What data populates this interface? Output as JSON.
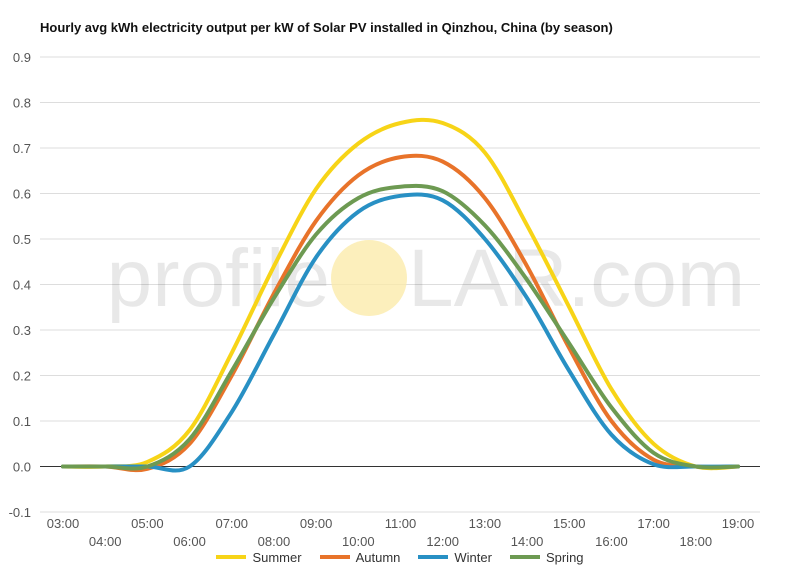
{
  "watermark": {
    "text_pre": "profile",
    "text_post": "LAR.com"
  },
  "chart_data": {
    "type": "line",
    "title": "Hourly avg kWh electricity output per kW of Solar PV installed in Qinzhou, China (by season)",
    "xlabel": "",
    "ylabel": "",
    "ylim": [
      -0.1,
      0.9
    ],
    "yticks": [
      "-0.1",
      "0.0",
      "0.1",
      "0.2",
      "0.3",
      "0.4",
      "0.5",
      "0.6",
      "0.7",
      "0.8",
      "0.9"
    ],
    "x": [
      "03:00",
      "04:00",
      "05:00",
      "06:00",
      "07:00",
      "08:00",
      "09:00",
      "10:00",
      "11:00",
      "12:00",
      "13:00",
      "14:00",
      "15:00",
      "16:00",
      "17:00",
      "18:00",
      "19:00"
    ],
    "grid": true,
    "legend_position": "bottom",
    "series": [
      {
        "name": "Summer",
        "color": "#f7d417",
        "values": [
          0.0,
          0.0,
          0.01,
          0.08,
          0.25,
          0.44,
          0.61,
          0.71,
          0.755,
          0.755,
          0.69,
          0.53,
          0.35,
          0.17,
          0.05,
          0.0,
          0.0
        ]
      },
      {
        "name": "Autumn",
        "color": "#e8732a",
        "values": [
          0.0,
          0.0,
          -0.005,
          0.05,
          0.2,
          0.38,
          0.54,
          0.64,
          0.68,
          0.67,
          0.59,
          0.44,
          0.26,
          0.1,
          0.015,
          0.0,
          0.0
        ]
      },
      {
        "name": "Winter",
        "color": "#2890c4",
        "values": [
          0.0,
          0.0,
          0.0,
          0.0,
          0.12,
          0.29,
          0.46,
          0.56,
          0.595,
          0.585,
          0.5,
          0.37,
          0.21,
          0.07,
          0.005,
          0.0,
          0.0
        ]
      },
      {
        "name": "Spring",
        "color": "#6d9a52",
        "values": [
          0.0,
          0.0,
          0.0,
          0.06,
          0.21,
          0.37,
          0.51,
          0.59,
          0.615,
          0.605,
          0.53,
          0.41,
          0.27,
          0.13,
          0.03,
          0.0,
          0.0
        ]
      }
    ]
  }
}
